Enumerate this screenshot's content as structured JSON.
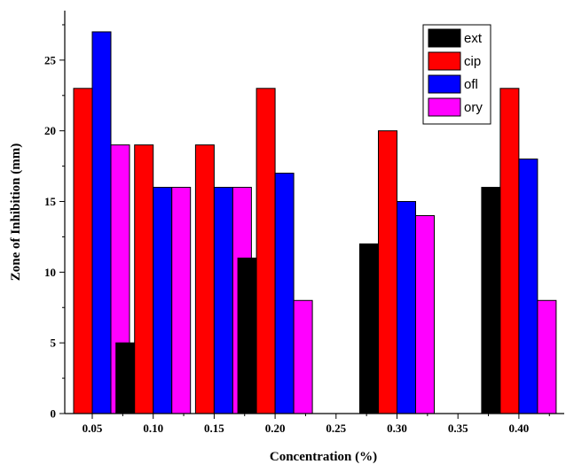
{
  "chart_data": {
    "type": "bar",
    "title": "",
    "xlabel": "Concentration (%)",
    "ylabel": "Zone of Inhibition (mm)",
    "categories": [
      "0.05",
      "0.10",
      "0.15",
      "0.20",
      "0.25",
      "0.30",
      "0.35",
      "0.40"
    ],
    "ylim": [
      0,
      28.5
    ],
    "yticks": [
      0,
      5,
      10,
      15,
      20,
      25
    ],
    "series": [
      {
        "name": "ext",
        "color": "#000000",
        "values": [
          0,
          5,
          0,
          11,
          0,
          12,
          0,
          16
        ]
      },
      {
        "name": "cip",
        "color": "#ff0000",
        "values": [
          23,
          19,
          19,
          23,
          0,
          20,
          0,
          23
        ]
      },
      {
        "name": "ofl",
        "color": "#0000ff",
        "values": [
          27,
          16,
          16,
          17,
          0,
          15,
          0,
          18
        ]
      },
      {
        "name": "ory",
        "color": "#ff00ff",
        "values": [
          19,
          16,
          16,
          8,
          0,
          14,
          0,
          8
        ]
      }
    ],
    "legend_position": "top-right",
    "grid": false
  }
}
